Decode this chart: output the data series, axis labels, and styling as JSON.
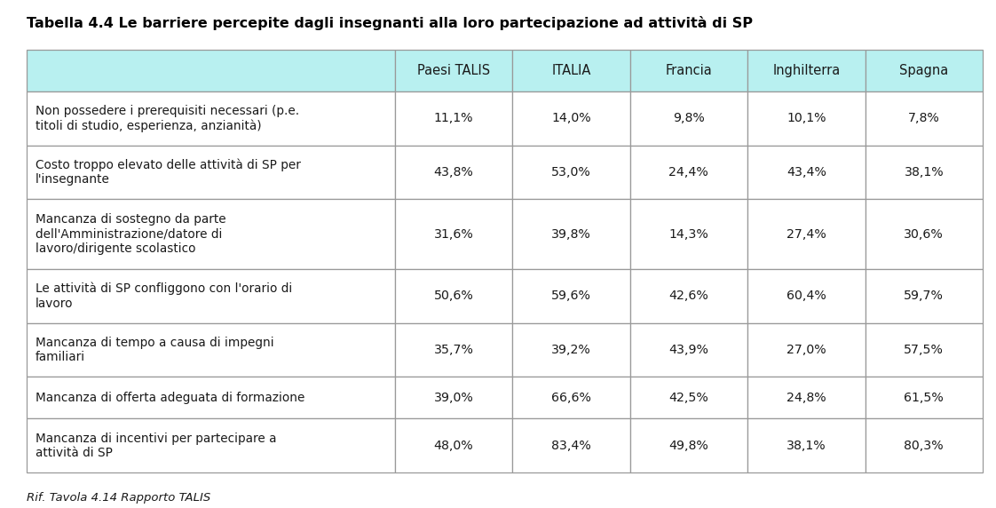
{
  "title": "Tabella 4.4 Le barriere percepite dagli insegnanti alla loro partecipazione ad attività di SP",
  "footnote": "Rif. Tavola 4.14 Rapporto TALIS",
  "columns": [
    "Paesi TALIS",
    "ITALIA",
    "Francia",
    "Inghilterra",
    "Spagna"
  ],
  "rows": [
    {
      "label": "Non possedere i prerequisiti necessari (p.e.\ntitoli di studio, esperienza, anzianità)",
      "values": [
        "11,1%",
        "14,0%",
        "9,8%",
        "10,1%",
        "7,8%"
      ]
    },
    {
      "label": "Costo troppo elevato delle attività di SP per\nl'insegnante",
      "values": [
        "43,8%",
        "53,0%",
        "24,4%",
        "43,4%",
        "38,1%"
      ]
    },
    {
      "label": "Mancanza di sostegno da parte\ndell'Amministrazione/datore di\nlavoro/dirigente scolastico",
      "values": [
        "31,6%",
        "39,8%",
        "14,3%",
        "27,4%",
        "30,6%"
      ]
    },
    {
      "label": "Le attività di SP confliggono con l'orario di\nlavoro",
      "values": [
        "50,6%",
        "59,6%",
        "42,6%",
        "60,4%",
        "59,7%"
      ]
    },
    {
      "label": "Mancanza di tempo a causa di impegni\nfamiliari",
      "values": [
        "35,7%",
        "39,2%",
        "43,9%",
        "27,0%",
        "57,5%"
      ]
    },
    {
      "label": "Mancanza di offerta adeguata di formazione",
      "values": [
        "39,0%",
        "66,6%",
        "42,5%",
        "24,8%",
        "61,5%"
      ]
    },
    {
      "label": "Mancanza di incentivi per partecipare a\nattività di SP",
      "values": [
        "48,0%",
        "83,4%",
        "49,8%",
        "38,1%",
        "80,3%"
      ]
    }
  ],
  "header_bg": "#b8f0f0",
  "row_bg": "#ffffff",
  "border_color": "#999999",
  "text_color": "#1a1a1a",
  "title_color": "#000000",
  "fig_width": 11.22,
  "fig_height": 5.72,
  "dpi": 100
}
